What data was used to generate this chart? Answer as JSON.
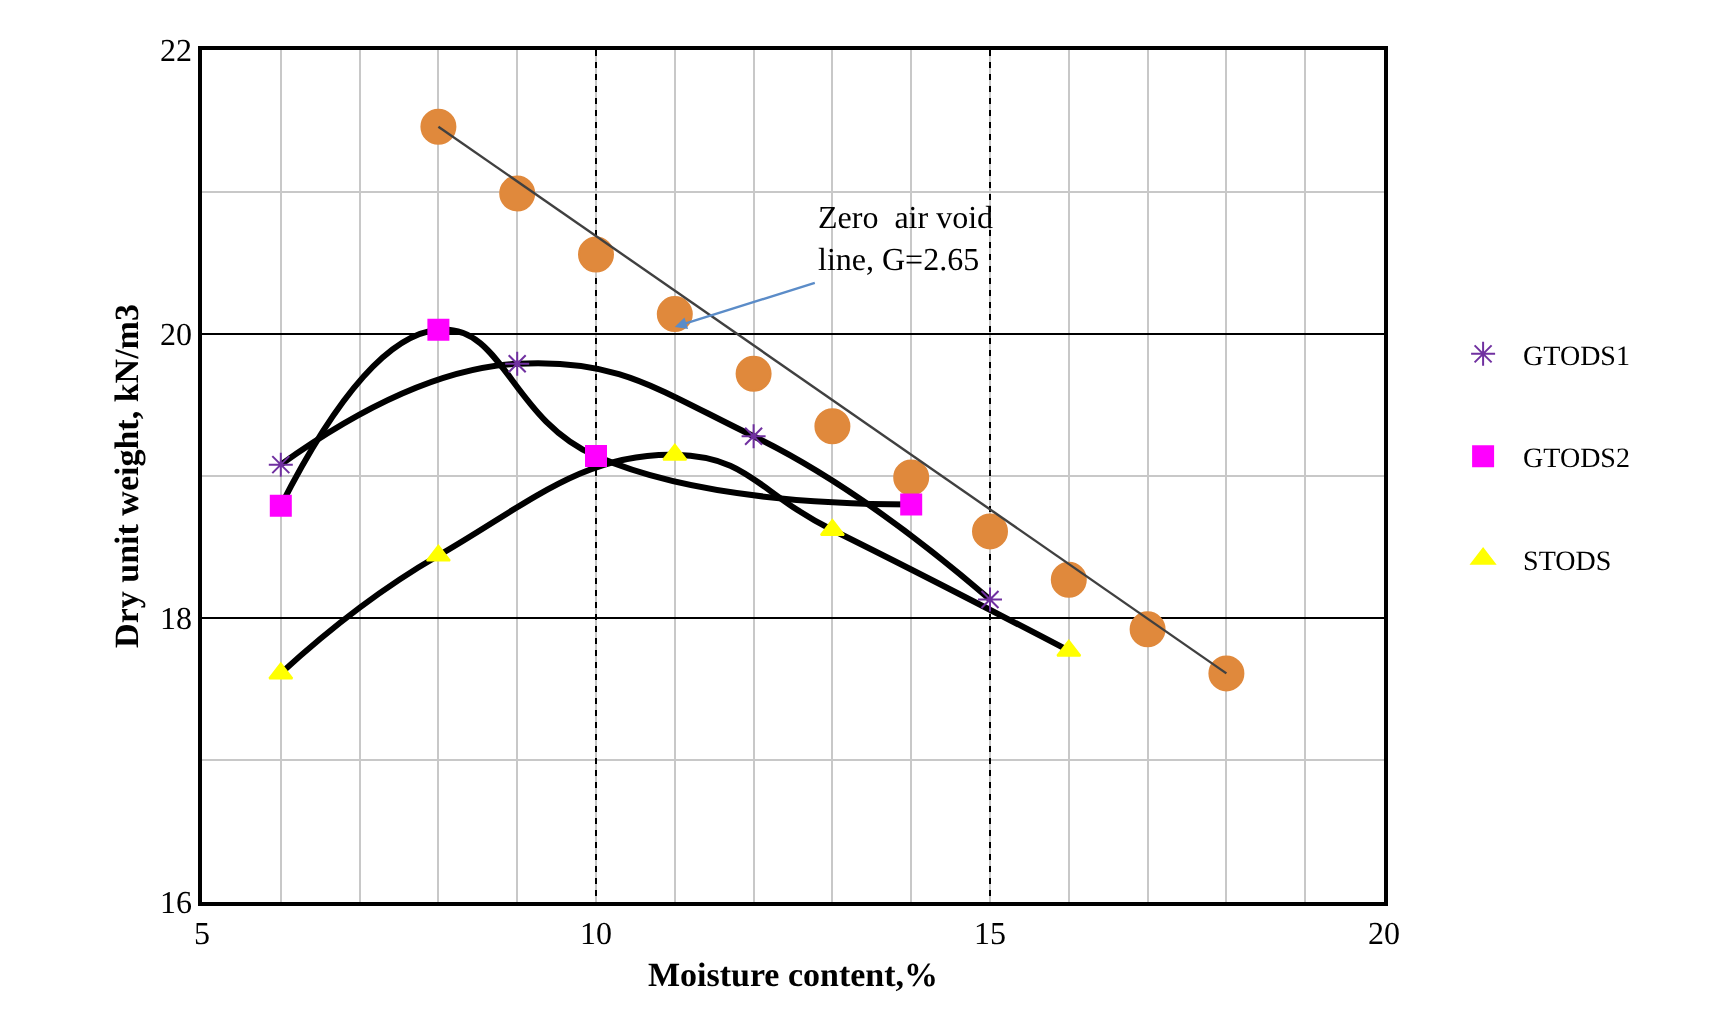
{
  "chart_data": {
    "type": "scatter",
    "xlabel": "Moisture content,%",
    "ylabel": "Dry unit weight, kN/m3",
    "xlim": [
      5,
      20
    ],
    "xticks": [
      5,
      10,
      15,
      20
    ],
    "ylim": [
      16,
      22
    ],
    "yticks": [
      16,
      18,
      20,
      22
    ],
    "grid": true,
    "legend": "right",
    "line_style": "solid",
    "series": [
      {
        "name": "GTODS1",
        "type": "line",
        "marker": "cross",
        "color": "#7030a0",
        "x": [
          6,
          9,
          12,
          15
        ],
        "values": [
          19.08,
          19.79,
          19.28,
          18.13
        ]
      },
      {
        "name": "GTODS2",
        "type": "line",
        "marker": "square",
        "color": "#ff00ff",
        "x": [
          6,
          8,
          10,
          14
        ],
        "values": [
          18.79,
          20.03,
          19.14,
          18.8
        ]
      },
      {
        "name": "STODS",
        "type": "line",
        "marker": "triangle",
        "color": "#ffff00",
        "x": [
          6,
          8,
          11,
          13,
          16
        ],
        "values": [
          17.61,
          18.44,
          19.15,
          18.62,
          17.77
        ]
      },
      {
        "marker": "circle",
        "color": "#e0893c",
        "x": [
          8,
          9,
          10,
          11,
          12,
          13,
          14,
          15,
          16,
          17,
          18
        ],
        "values": [
          21.46,
          20.99,
          20.56,
          20.14,
          19.72,
          19.35,
          18.99,
          18.61,
          18.27,
          17.92,
          17.61
        ]
      },
      {
        "type": "line",
        "marker": "none",
        "color": "#404040",
        "x": [
          8,
          18
        ],
        "values": [
          21.46,
          17.61
        ]
      }
    ],
    "annotations": [
      {
        "text": "Zero  air void\nline, G=2.65",
        "x": 11,
        "y": 20.05
      }
    ]
  }
}
